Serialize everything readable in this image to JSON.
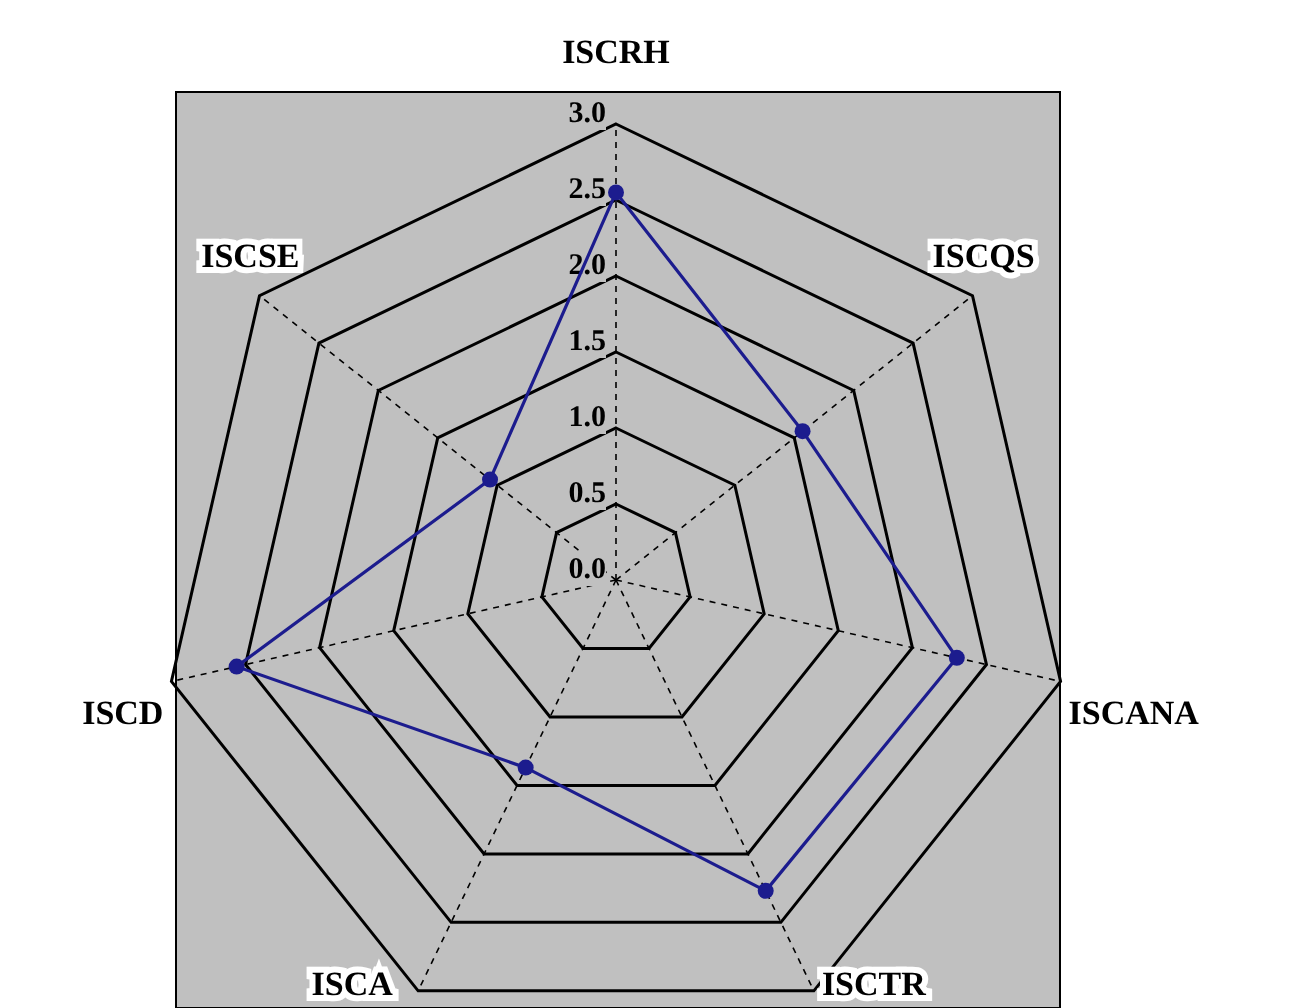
{
  "chart_data": {
    "type": "radar",
    "categories": [
      "ISCRH",
      "ISCQS",
      "ISCANA",
      "ISCTR",
      "ISCA",
      "ISCD",
      "ISCSE"
    ],
    "series": [
      {
        "color": "#1c1c8e",
        "values": [
          2.55,
          1.57,
          2.3,
          2.27,
          1.37,
          2.56,
          1.06
        ]
      }
    ],
    "ylim": [
      0,
      3
    ],
    "yticks": [
      {
        "value": 0,
        "label": "0.0"
      },
      {
        "value": 0.5,
        "label": "0.5"
      },
      {
        "value": 1,
        "label": "1.0"
      },
      {
        "value": 1.5,
        "label": "1.5"
      },
      {
        "value": 2,
        "label": "2.0"
      },
      {
        "value": 2.5,
        "label": "2.5"
      },
      {
        "value": 3,
        "label": "3.0"
      }
    ],
    "grid": true,
    "marker": "circle",
    "line_style": "solid"
  }
}
